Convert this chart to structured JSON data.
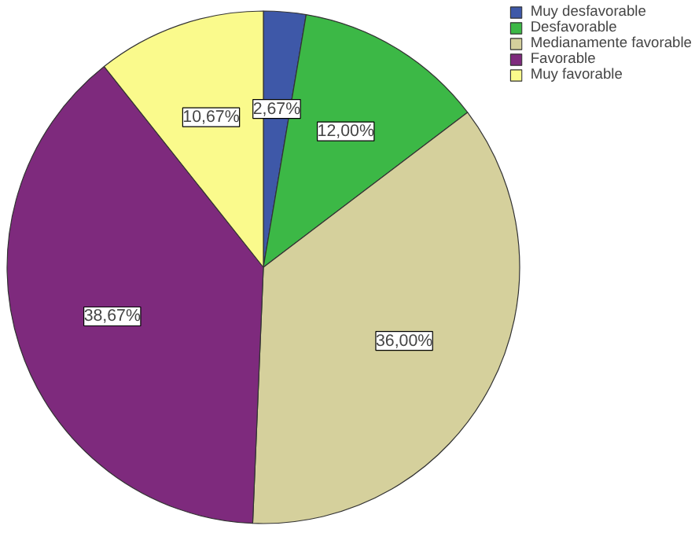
{
  "chart_data": {
    "type": "pie",
    "categories": [
      "Muy desfavorable",
      "Desfavorable",
      "Medianamente favorable",
      "Favorable",
      "Muy favorable"
    ],
    "values": [
      2.67,
      12.0,
      36.0,
      38.67,
      10.67
    ],
    "value_labels": [
      "2,67%",
      "12,00%",
      "36,00%",
      "38,67%",
      "10,67%"
    ],
    "colors": [
      "#3e58a8",
      "#3cb846",
      "#d5d09c",
      "#7e2a7d",
      "#fafa8c"
    ],
    "legend": "top right"
  }
}
